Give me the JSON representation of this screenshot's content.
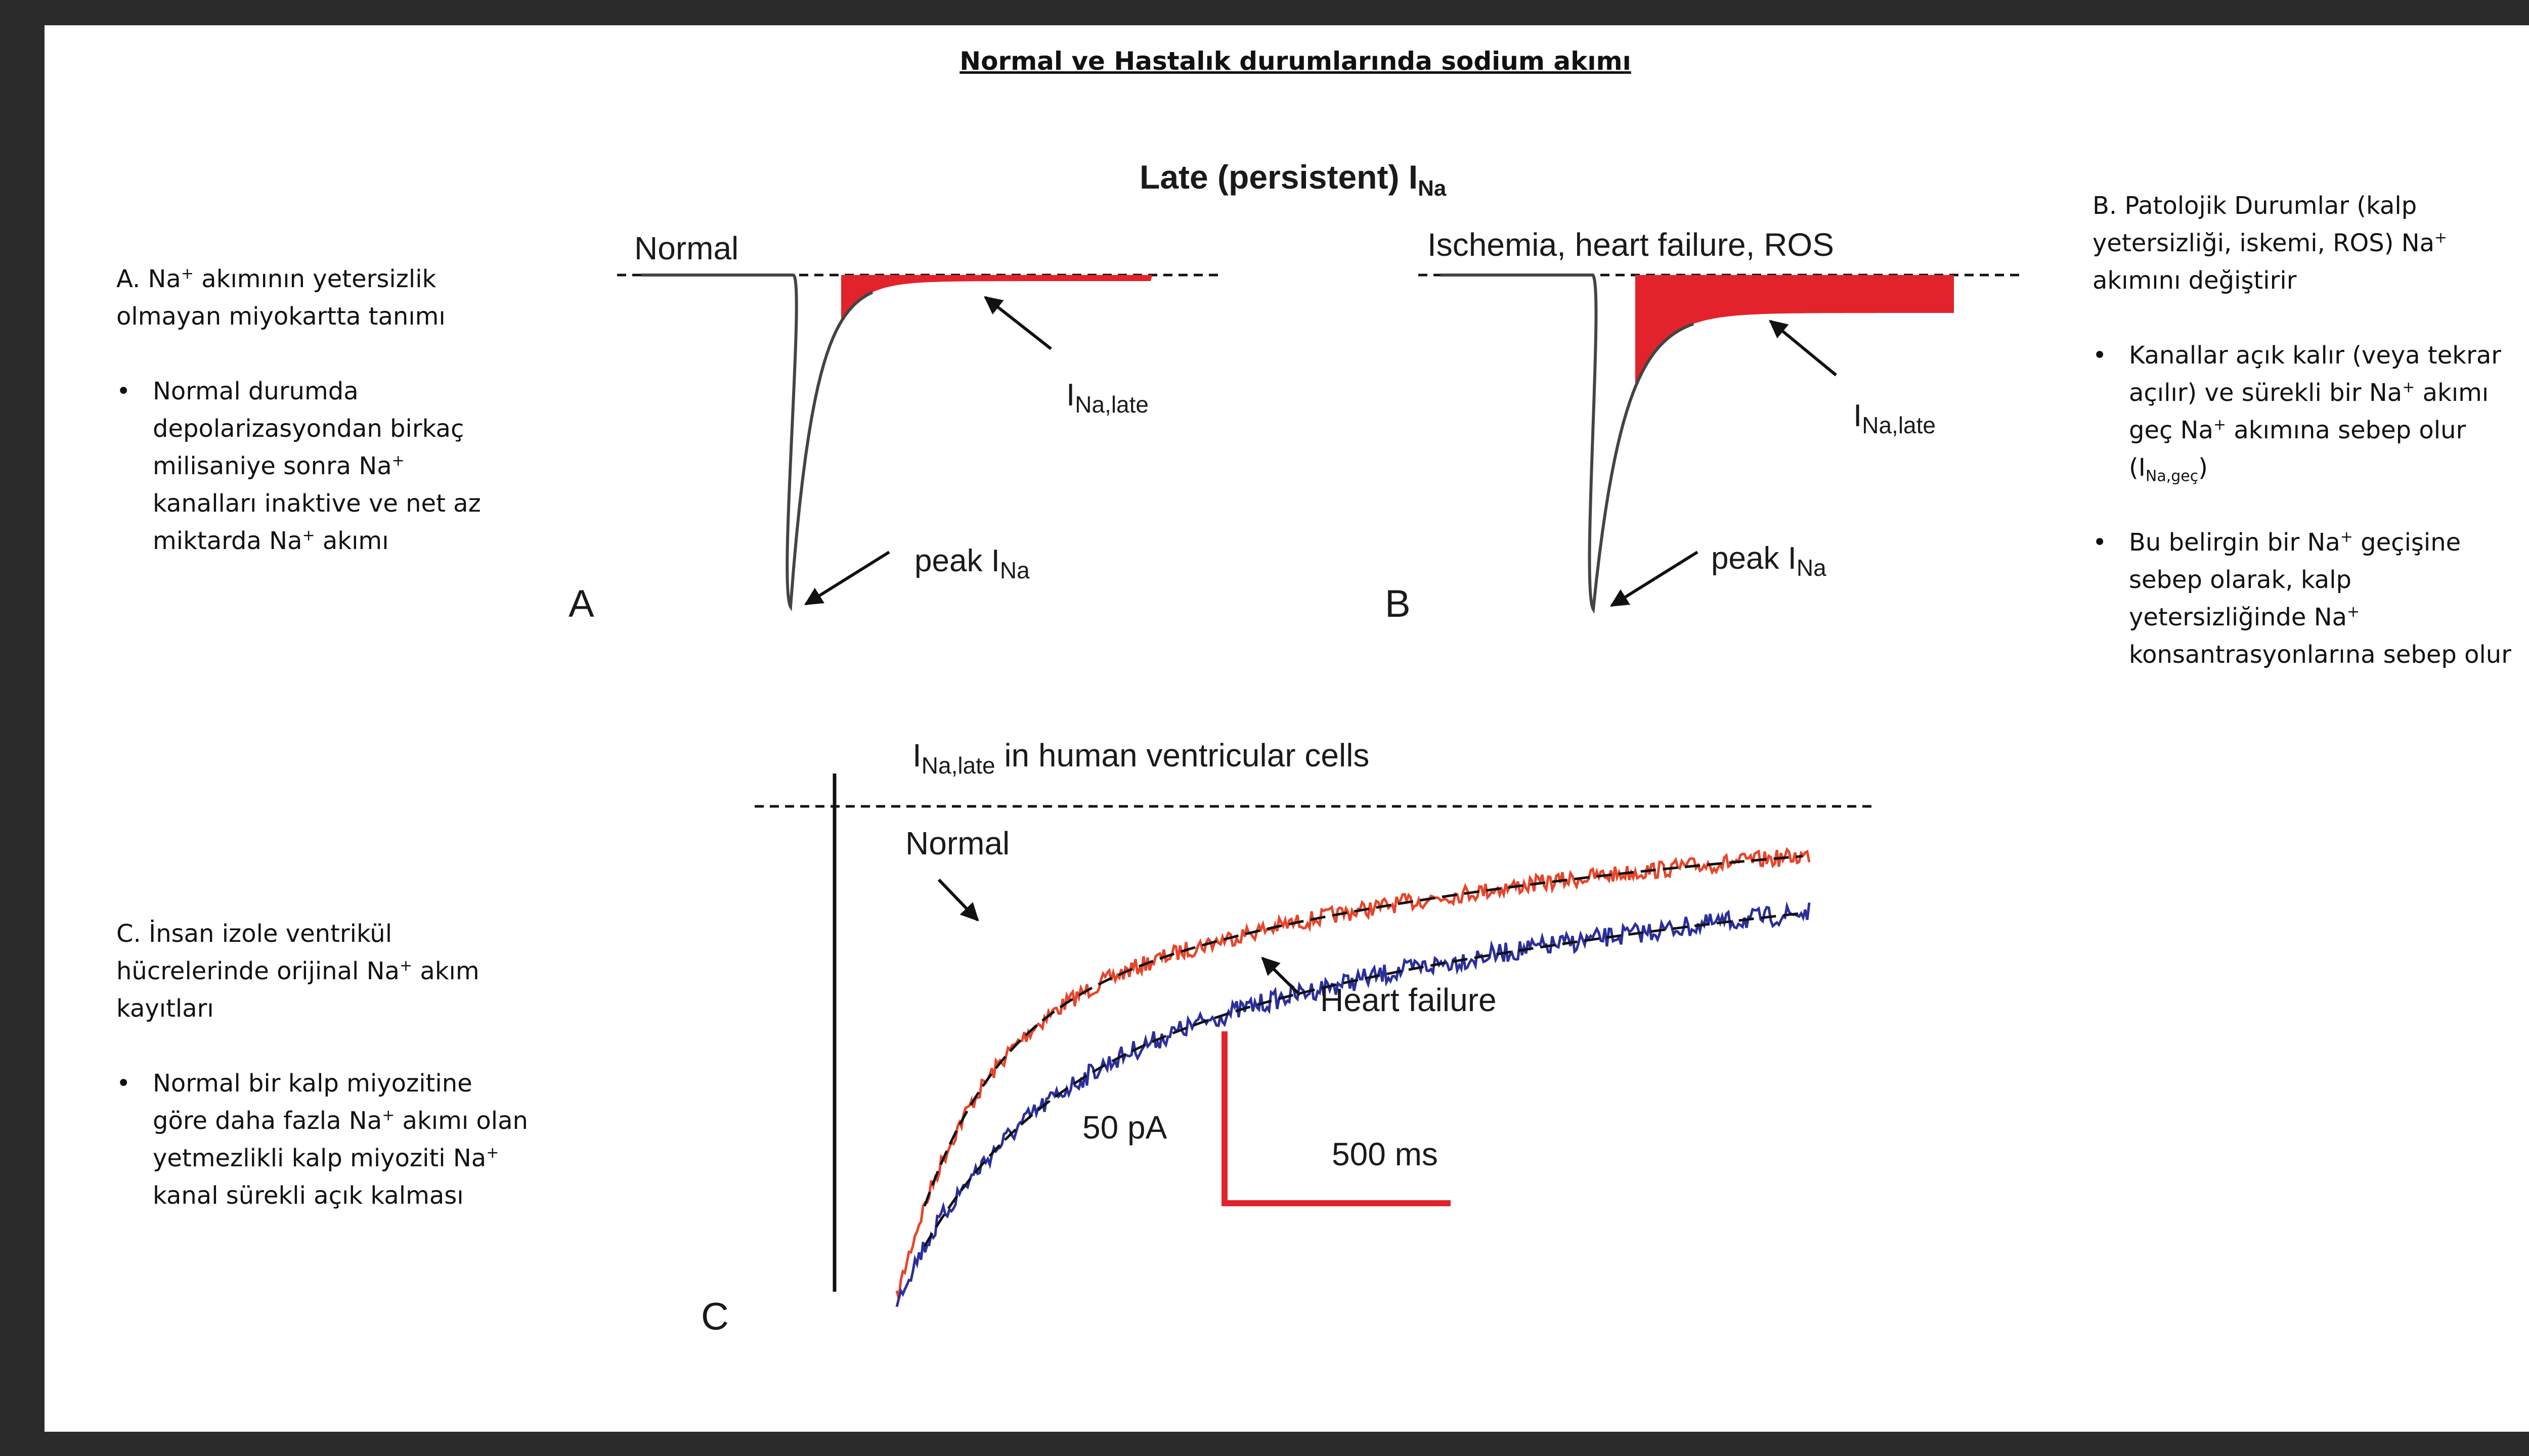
{
  "slide": {
    "title": "Normal ve Hastalık durumlarında sodium akımı"
  },
  "note_a": {
    "heading_pre": "A. Na",
    "heading_sup": "+",
    "heading_post": " akımının yetersizlik olmayan miyokartta tanımı",
    "bullet1_pre": "Normal durumda depolarizasyondan birkaç milisaniye sonra Na",
    "bullet1_sup": "+",
    "bullet1_mid": " kanalları inaktive ve net az miktarda Na",
    "bullet1_sup2": "+",
    "bullet1_post": " akımı"
  },
  "note_b": {
    "heading_pre": "B. Patolojik Durumlar (kalp yetersizliği, iskemi, ROS) Na",
    "heading_sup": "+",
    "heading_post": " akımını değiştirir",
    "bullet1_pre": "Kanallar açık kalır (veya tekrar açılır) ve sürekli bir Na",
    "bullet1_sup": "+",
    "bullet1_mid": " akımı geç Na",
    "bullet1_sup2": "+",
    "bullet1_mid2": " akımına sebep olur (I",
    "bullet1_sub": "Na,geç",
    "bullet1_post": ")",
    "bullet2_pre": "Bu belirgin bir Na",
    "bullet2_sup": "+",
    "bullet2_mid": " geçişine sebep olarak, kalp yetersizliğinde Na",
    "bullet2_sup2": "+",
    "bullet2_post": " konsantrasyonlarına sebep olur"
  },
  "note_c": {
    "heading_pre": "C. İnsan izole ventrikül hücrelerinde orijinal Na",
    "heading_sup": "+",
    "heading_post": " akım kayıtları",
    "bullet1_pre": "Normal bir kalp miyozitine göre daha fazla Na",
    "bullet1_sup": "+",
    "bullet1_mid": " akımı olan yetmezlikli kalp miyoziti Na",
    "bullet1_sup2": "+",
    "bullet1_post": " kanal sürekli açık kalması"
  },
  "figure": {
    "top_title_pre": "Late (persistent) I",
    "top_title_sub": "Na",
    "panel_a": {
      "letter": "A",
      "condition": "Normal",
      "late_label_pre": "I",
      "late_label_sub": "Na,late",
      "peak_label_pre": "peak I",
      "peak_label_sub": "Na"
    },
    "panel_b": {
      "letter": "B",
      "condition": "Ischemia, heart failure, ROS",
      "late_label_pre": "I",
      "late_label_sub": "Na,late",
      "peak_label_pre": "peak I",
      "peak_label_sub": "Na"
    },
    "panel_c": {
      "letter": "C",
      "title_pre": "I",
      "title_sub": "Na,late",
      "title_post": " in human ventricular cells",
      "normal_label": "Normal",
      "hf_label": "Heart failure",
      "scale_y_label": "50 pA",
      "scale_x_label": "500 ms"
    },
    "colors": {
      "late_fill": "#e3232b",
      "normal_trace": "#e8452a",
      "hf_trace": "#2b2f9c",
      "scale_bar": "#e3232b"
    }
  }
}
